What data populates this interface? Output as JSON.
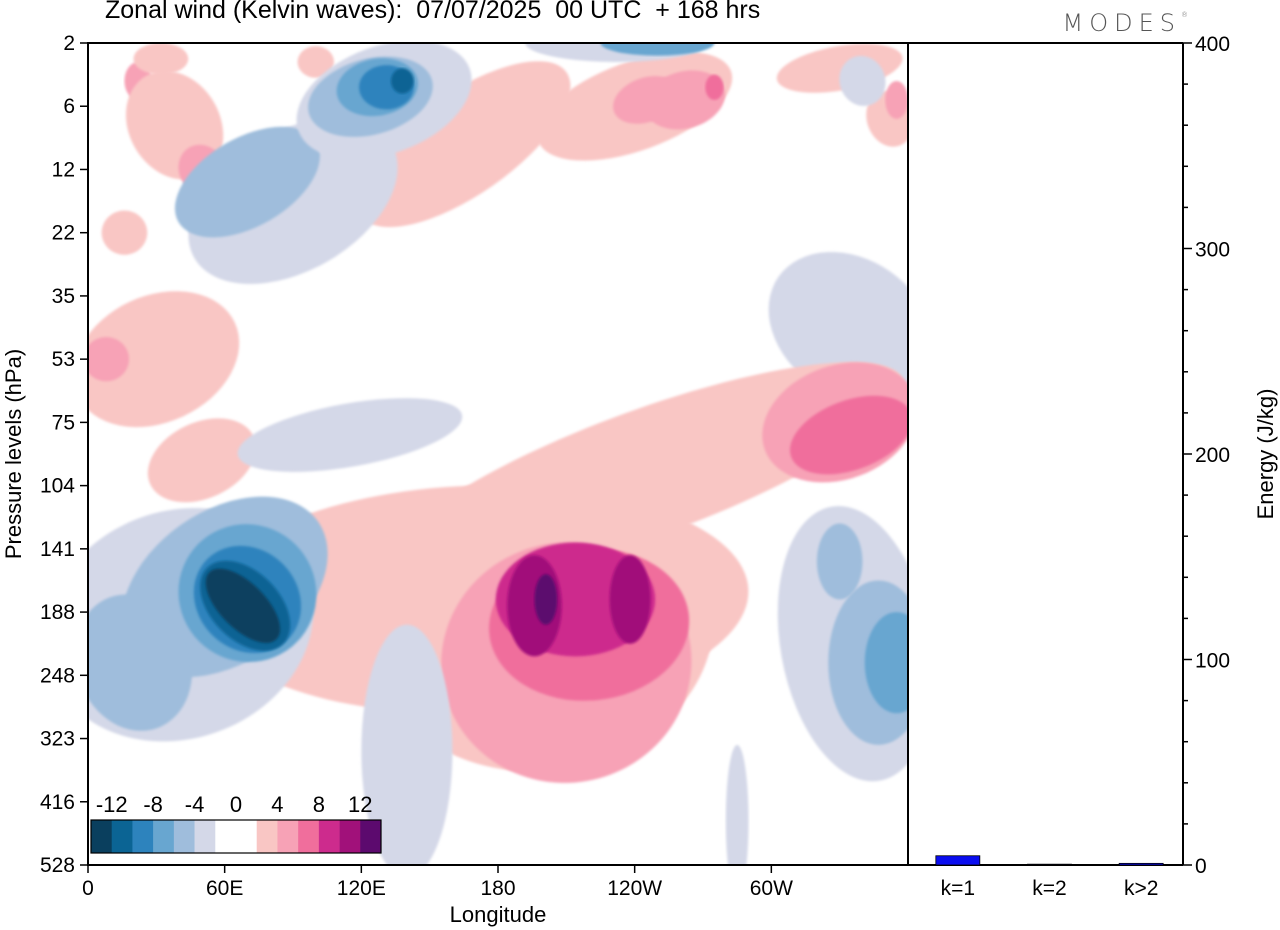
{
  "title": "Zonal wind (Kelvin waves):  07/07/2025  00 UTC  + 168 hrs",
  "brand": "MODES",
  "brand_mark": "®",
  "colors": {
    "-14": "#0a3f5e",
    "-12": "#0b6494",
    "-10": "#2d83bd",
    "-8": "#68a6d0",
    "-6": "#9fbddc",
    "-4": "#d4d8e8",
    "0": "#ffffff",
    "4": "#f9c6c4",
    "6": "#f7a2b6",
    "8": "#f06e9c",
    "10": "#cd2b8d",
    "12": "#a1117a",
    "14": "#5c0a6e",
    "energy_bar": "#0a0df0"
  },
  "chart_data": [
    {
      "type": "heatmap",
      "title": "Zonal wind (Kelvin waves):  07/07/2025  00 UTC  + 168 hrs",
      "xlabel": "Longitude",
      "ylabel": "Pressure levels (hPa)",
      "x_ticks": [
        {
          "lon": 0,
          "label": "0"
        },
        {
          "lon": 60,
          "label": "60E"
        },
        {
          "lon": 120,
          "label": "120E"
        },
        {
          "lon": 180,
          "label": "180"
        },
        {
          "lon": 240,
          "label": "120W"
        },
        {
          "lon": 300,
          "label": "60W"
        }
      ],
      "xlim": [
        0,
        360
      ],
      "y_levels": [
        2,
        6,
        12,
        22,
        35,
        53,
        75,
        104,
        141,
        188,
        248,
        323,
        416,
        528
      ],
      "colorbar": {
        "tick_labels": [
          "-12",
          "-8",
          "-4",
          "0",
          "4",
          "8",
          "12"
        ],
        "bins": [
          -14,
          -12,
          -10,
          -8,
          -6,
          -4,
          0,
          0,
          4,
          6,
          8,
          10,
          12,
          14
        ]
      },
      "blobs": [
        {
          "x": 16,
          "y": 3.0,
          "rx": 10,
          "ry": 0.35,
          "rot": 0,
          "v": 4
        },
        {
          "x": 22,
          "y": 0.6,
          "rx": 6,
          "ry": 0.3,
          "rot": 0,
          "v": 6
        },
        {
          "x": 38,
          "y": 1.3,
          "rx": 20,
          "ry": 0.9,
          "rot": -30,
          "v": 4
        },
        {
          "x": 50,
          "y": 2.0,
          "rx": 10,
          "ry": 0.4,
          "rot": -30,
          "v": 6
        },
        {
          "x": 32,
          "y": 0.25,
          "rx": 12,
          "ry": 0.25,
          "rot": 0,
          "v": 4
        },
        {
          "x": 100,
          "y": 0.3,
          "rx": 8,
          "ry": 0.25,
          "rot": 0,
          "v": 4
        },
        {
          "x": 165,
          "y": 1.6,
          "rx": 55,
          "ry": 0.8,
          "rot": -35,
          "v": 4
        },
        {
          "x": 240,
          "y": 1.0,
          "rx": 45,
          "ry": 0.7,
          "rot": -20,
          "v": 4
        },
        {
          "x": 262,
          "y": 0.9,
          "rx": 18,
          "ry": 0.45,
          "rot": -15,
          "v": 6
        },
        {
          "x": 275,
          "y": 0.7,
          "rx": 4,
          "ry": 0.2,
          "rot": 0,
          "v": 8
        },
        {
          "x": 245,
          "y": 0.9,
          "rx": 15,
          "ry": 0.35,
          "rot": -20,
          "v": 6
        },
        {
          "x": 330,
          "y": 0.4,
          "rx": 28,
          "ry": 0.35,
          "rot": -10,
          "v": 4
        },
        {
          "x": 352,
          "y": 1.2,
          "rx": 10,
          "ry": 0.45,
          "rot": -20,
          "v": 4
        },
        {
          "x": 355,
          "y": 0.9,
          "rx": 5,
          "ry": 0.3,
          "rot": 0,
          "v": 6
        },
        {
          "x": 90,
          "y": 2.5,
          "rx": 50,
          "ry": 1.1,
          "rot": -30,
          "v": -4
        },
        {
          "x": 70,
          "y": 2.2,
          "rx": 35,
          "ry": 0.7,
          "rot": -30,
          "v": -6
        },
        {
          "x": 130,
          "y": 0.9,
          "rx": 40,
          "ry": 0.85,
          "rot": -20,
          "v": -4
        },
        {
          "x": 124,
          "y": 0.85,
          "rx": 28,
          "ry": 0.6,
          "rot": -15,
          "v": -6
        },
        {
          "x": 127,
          "y": 0.7,
          "rx": 18,
          "ry": 0.45,
          "rot": -10,
          "v": -8
        },
        {
          "x": 131,
          "y": 0.7,
          "rx": 12,
          "ry": 0.35,
          "rot": 0,
          "v": -10
        },
        {
          "x": 138,
          "y": 0.6,
          "rx": 5,
          "ry": 0.2,
          "rot": 0,
          "v": -12
        },
        {
          "x": 232,
          "y": 0.0,
          "rx": 40,
          "ry": 0.3,
          "rot": 0,
          "v": -4
        },
        {
          "x": 250,
          "y": 0.0,
          "rx": 25,
          "ry": 0.2,
          "rot": 0,
          "v": -8
        },
        {
          "x": 340,
          "y": 0.6,
          "rx": 10,
          "ry": 0.4,
          "rot": -20,
          "v": -4
        },
        {
          "x": 335,
          "y": 4.5,
          "rx": 30,
          "ry": 1.4,
          "rot": -55,
          "v": -4
        },
        {
          "x": 30,
          "y": 5.0,
          "rx": 38,
          "ry": 1.0,
          "rot": -25,
          "v": 4
        },
        {
          "x": 8,
          "y": 5.0,
          "rx": 10,
          "ry": 0.35,
          "rot": 0,
          "v": 6
        },
        {
          "x": 50,
          "y": 6.6,
          "rx": 25,
          "ry": 0.6,
          "rot": -25,
          "v": 4
        },
        {
          "x": 170,
          "y": 8.8,
          "rx": 120,
          "ry": 1.8,
          "rot": -2,
          "v": 4
        },
        {
          "x": 245,
          "y": 6.8,
          "rx": 120,
          "ry": 1.0,
          "rot": -20,
          "v": 4
        },
        {
          "x": 330,
          "y": 6.0,
          "rx": 35,
          "ry": 0.9,
          "rot": -20,
          "v": 6
        },
        {
          "x": 335,
          "y": 6.2,
          "rx": 28,
          "ry": 0.55,
          "rot": -20,
          "v": 8
        },
        {
          "x": 200,
          "y": 9.3,
          "rx": 75,
          "ry": 2.2,
          "rot": -10,
          "v": 4
        },
        {
          "x": 210,
          "y": 9.8,
          "rx": 55,
          "ry": 1.9,
          "rot": -10,
          "v": 6
        },
        {
          "x": 220,
          "y": 9.2,
          "rx": 44,
          "ry": 1.2,
          "rot": -5,
          "v": 8
        },
        {
          "x": 214,
          "y": 8.8,
          "rx": 35,
          "ry": 0.9,
          "rot": 0,
          "v": 10
        },
        {
          "x": 196,
          "y": 8.9,
          "rx": 12,
          "ry": 0.8,
          "rot": 0,
          "v": 12
        },
        {
          "x": 201,
          "y": 8.8,
          "rx": 5,
          "ry": 0.4,
          "rot": 0,
          "v": 14
        },
        {
          "x": 238,
          "y": 8.8,
          "rx": 9,
          "ry": 0.7,
          "rot": 0,
          "v": 12
        },
        {
          "x": 40,
          "y": 9.2,
          "rx": 60,
          "ry": 1.8,
          "rot": -20,
          "v": -4
        },
        {
          "x": 60,
          "y": 8.6,
          "rx": 50,
          "ry": 1.2,
          "rot": -35,
          "v": -6
        },
        {
          "x": 70,
          "y": 8.7,
          "rx": 30,
          "ry": 1.1,
          "rot": -45,
          "v": -8
        },
        {
          "x": 70,
          "y": 8.8,
          "rx": 22,
          "ry": 0.9,
          "rot": -45,
          "v": -10
        },
        {
          "x": 69,
          "y": 8.9,
          "rx": 15,
          "ry": 0.85,
          "rot": -45,
          "v": -12
        },
        {
          "x": 68,
          "y": 8.9,
          "rx": 10,
          "ry": 0.75,
          "rot": -45,
          "v": -14
        },
        {
          "x": 20,
          "y": 9.8,
          "rx": 25,
          "ry": 1.1,
          "rot": -20,
          "v": -6
        },
        {
          "x": 140,
          "y": 11.2,
          "rx": 20,
          "ry": 2.0,
          "rot": 0,
          "v": -4
        },
        {
          "x": 115,
          "y": 6.2,
          "rx": 50,
          "ry": 0.5,
          "rot": -10,
          "v": -4
        },
        {
          "x": 337,
          "y": 9.5,
          "rx": 33,
          "ry": 2.2,
          "rot": -10,
          "v": -4
        },
        {
          "x": 347,
          "y": 9.8,
          "rx": 22,
          "ry": 1.3,
          "rot": 0,
          "v": -6
        },
        {
          "x": 355,
          "y": 9.8,
          "rx": 14,
          "ry": 0.8,
          "rot": 0,
          "v": -8
        },
        {
          "x": 330,
          "y": 8.2,
          "rx": 10,
          "ry": 0.6,
          "rot": 0,
          "v": -6
        },
        {
          "x": 285,
          "y": 12.3,
          "rx": 5,
          "ry": 1.2,
          "rot": 0,
          "v": -4
        }
      ]
    },
    {
      "type": "bar",
      "categories": [
        "k=1",
        "k=2",
        "k>2"
      ],
      "values": [
        4.5,
        0.4,
        0.8
      ],
      "ylabel": "Energy (J/kg)",
      "ylim": [
        0,
        400
      ],
      "y_ticks": [
        0,
        100,
        200,
        300,
        400
      ]
    }
  ]
}
